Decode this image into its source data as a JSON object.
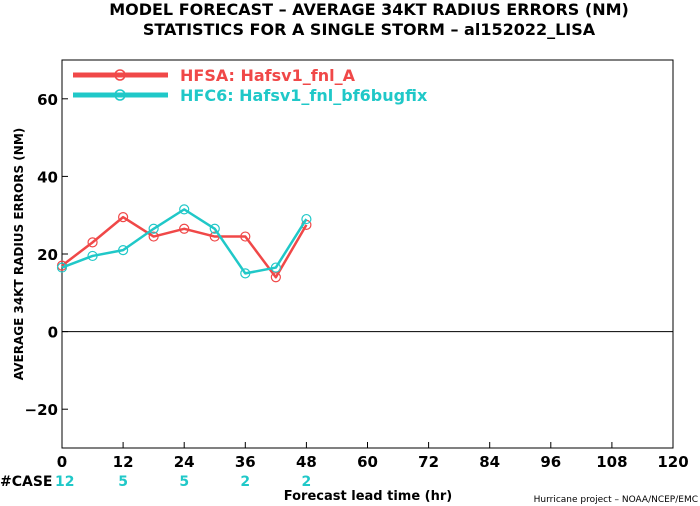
{
  "chart_data": {
    "type": "line",
    "title": "MODEL FORECAST – AVERAGE 34KT RADIUS ERRORS (NM)",
    "subtitle": "STATISTICS FOR A SINGLE STORM – al152022_LISA",
    "xlabel": "Forecast lead time (hr)",
    "ylabel": "AVERAGE 34KT RADIUS ERRORS (NM)",
    "xlim": [
      0,
      120
    ],
    "ylim": [
      -30,
      70
    ],
    "x_ticks": [
      0,
      12,
      24,
      36,
      48,
      60,
      72,
      84,
      96,
      108,
      120
    ],
    "y_ticks": [
      -20,
      0,
      20,
      40,
      60
    ],
    "grid": false,
    "legend_position": "top-left",
    "series": [
      {
        "name": "HFSA: Hafsv1_fnl_A",
        "color": "#f04848",
        "x": [
          0,
          6,
          12,
          18,
          24,
          30,
          36,
          42,
          48
        ],
        "y": [
          17,
          23,
          29.5,
          24.5,
          26.5,
          24.5,
          24.5,
          14,
          27.5
        ]
      },
      {
        "name": "HFC6: Hafsv1_fnl_bf6bugfix",
        "color": "#20c8c8",
        "x": [
          0,
          6,
          12,
          18,
          24,
          30,
          36,
          42,
          48
        ],
        "y": [
          16.5,
          19.5,
          21,
          26.5,
          31.5,
          26.5,
          15,
          16.5,
          29
        ]
      }
    ],
    "case_count": {
      "label": "#CASE",
      "x": [
        0,
        12,
        24,
        36,
        48
      ],
      "values": [
        "12",
        "5",
        "5",
        "2",
        "2"
      ],
      "color": "#20c8c8"
    },
    "credit": "Hurricane project – NOAA/NCEP/EMC"
  }
}
